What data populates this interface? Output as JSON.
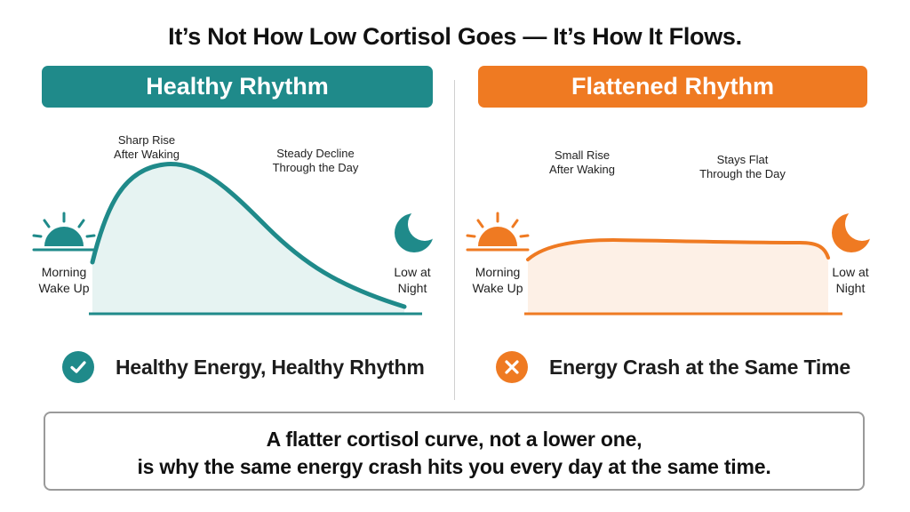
{
  "title": "It’s Not How Low Cortisol Goes — It’s How It Flows.",
  "colors": {
    "healthy": "#1f8a8a",
    "flattened": "#ef7a22",
    "healthy_fill": "#e6f3f2",
    "flat_fill": "#fdf0e6"
  },
  "left_panel": {
    "header": "Healthy Rhythm",
    "peak_label": [
      "Sharp Rise",
      "After Waking"
    ],
    "decline_label": [
      "Steady Decline",
      "Through the Day"
    ],
    "start_label": [
      "Morning",
      "Wake Up"
    ],
    "end_label": [
      "Low at",
      "Night"
    ],
    "start_icon": "sunrise-icon",
    "end_icon": "crescent-moon-icon",
    "result_icon": "check-circle-icon",
    "result": "Healthy Energy, Healthy Rhythm"
  },
  "right_panel": {
    "header": "Flattened Rhythm",
    "peak_label": [
      "Small Rise",
      "After Waking"
    ],
    "flat_label": [
      "Stays Flat",
      "Through the Day"
    ],
    "start_label": [
      "Morning",
      "Wake Up"
    ],
    "end_label": [
      "Low at",
      "Night"
    ],
    "start_icon": "sunrise-icon",
    "end_icon": "crescent-moon-icon",
    "result_icon": "x-circle-icon",
    "result": "Energy Crash at the Same Time"
  },
  "bottom_message": [
    "A flatter cortisol curve, not a lower one,",
    "is why the same energy crash hits you every day at the same time."
  ]
}
